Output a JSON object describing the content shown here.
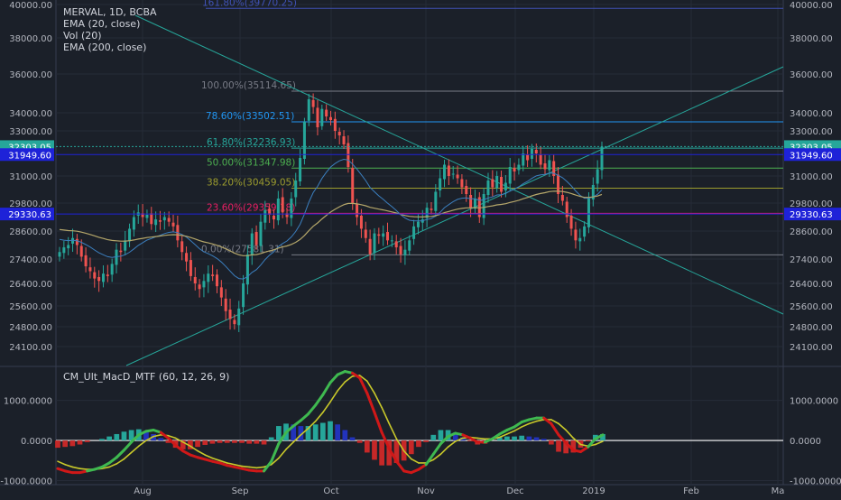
{
  "chart_data": [
    {
      "type": "candlestick",
      "panel": "price",
      "legend": [
        "MERVAL, 1D, BCBA",
        "EMA (20, close)",
        "Vol (20)",
        "EMA (200, close)"
      ],
      "ylim": [
        23500,
        40000
      ],
      "y_ticks": [
        "40000.00",
        "38000.00",
        "36000.00",
        "34000.00",
        "33000.00",
        "31000.00",
        "29800.00",
        "28600.00",
        "27400.00",
        "26400.00",
        "25600.00",
        "24800.00",
        "24100.00"
      ],
      "y_tick_values": [
        40000,
        38000,
        36000,
        34000,
        33000,
        31000,
        29800,
        28600,
        27400,
        26400,
        25600,
        24800,
        24100
      ],
      "x_ticks": [
        "Aug",
        "Sep",
        "Oct",
        "Nov",
        "Dec",
        "2019",
        "Feb",
        "Ma"
      ],
      "price_tags": [
        {
          "label": "32303.05",
          "value": 32303.05,
          "color": "#26a69a",
          "side": "both"
        },
        {
          "label": "31949.60",
          "value": 31949.6,
          "color": "#1e22d8",
          "side": "both"
        },
        {
          "label": "29330.63",
          "value": 29330.63,
          "color": "#1e22d8",
          "side": "both"
        }
      ],
      "fibonacci": [
        {
          "label": "161.80%(39770.25)",
          "value": 39770.25,
          "color": "#3f51b5"
        },
        {
          "label": "100.00%(35114.65)",
          "value": 35114.65,
          "color": "#787b86"
        },
        {
          "label": "78.60%(33502.51)",
          "value": 33502.51,
          "color": "#2196f3"
        },
        {
          "label": "61.80%(32236.93)",
          "value": 32236.93,
          "color": "#26a69a"
        },
        {
          "label": "50.00%(31347.98)",
          "value": 31347.98,
          "color": "#4caf50"
        },
        {
          "label": "38.20%(30459.05)",
          "value": 30459.05,
          "color": "#9c9c2e"
        },
        {
          "label": "23.60%(29359.18)",
          "value": 29359.18,
          "color": "#e91e63"
        },
        {
          "label": "0.00%(27581.31)",
          "value": 27581.31,
          "color": "#787b86"
        }
      ],
      "closes": [
        27700,
        27900,
        28000,
        28300,
        28000,
        27500,
        27100,
        26900,
        26600,
        26500,
        26800,
        26700,
        27200,
        27800,
        27700,
        28200,
        28700,
        29200,
        29400,
        29200,
        29300,
        28900,
        29100,
        29000,
        29200,
        29000,
        28800,
        28200,
        27700,
        27300,
        26700,
        26400,
        26200,
        26500,
        26800,
        26700,
        26300,
        25900,
        25400,
        25100,
        24900,
        25500,
        26400,
        27600,
        28500,
        28000,
        29000,
        29500,
        29300,
        29100,
        30000,
        29400,
        29200,
        30000,
        30800,
        31800,
        33500,
        34700,
        34300,
        33200,
        34200,
        33800,
        33600,
        33000,
        32800,
        32400,
        31400,
        29800,
        29200,
        28700,
        28300,
        27600,
        28500,
        28400,
        28500,
        28200,
        28200,
        27900,
        27600,
        27800,
        28200,
        28800,
        29000,
        29100,
        29600,
        29500,
        30300,
        30900,
        31500,
        31000,
        31100,
        30900,
        30500,
        30200,
        29600,
        30000,
        29200,
        30200,
        30800,
        30500,
        31000,
        30300,
        30700,
        31400,
        31200,
        31500,
        32000,
        31700,
        32200,
        32000,
        31500,
        31300,
        31700,
        31000,
        30200,
        29900,
        29200,
        28700,
        28200,
        28300,
        28800,
        30000,
        30600,
        31300,
        32303
      ]
    },
    {
      "type": "macd",
      "panel": "indicator",
      "title": "CM_Ult_MacD_MTF (60, 12, 26, 9)",
      "ylim": [
        -1100,
        1800
      ],
      "y_ticks": [
        "1000.0000",
        "0.0000",
        "-1000.0000"
      ],
      "y_tick_values": [
        1000,
        0,
        -1000
      ],
      "macd": [
        -700,
        -760,
        -800,
        -800,
        -760,
        -720,
        -660,
        -560,
        -420,
        -240,
        -40,
        140,
        230,
        260,
        200,
        60,
        -120,
        -260,
        -360,
        -420,
        -470,
        -520,
        -560,
        -620,
        -660,
        -700,
        -740,
        -760,
        -760,
        -520,
        -80,
        200,
        360,
        500,
        660,
        880,
        1140,
        1440,
        1640,
        1720,
        1680,
        1560,
        1180,
        700,
        200,
        -200,
        -520,
        -760,
        -800,
        -720,
        -600,
        -340,
        -80,
        100,
        180,
        140,
        60,
        -40,
        -40,
        40,
        160,
        260,
        340,
        460,
        520,
        560,
        560,
        420,
        140,
        -60,
        -240,
        -280,
        -160,
        40,
        140
      ],
      "signal": [
        -520,
        -600,
        -660,
        -700,
        -720,
        -720,
        -700,
        -660,
        -580,
        -460,
        -300,
        -140,
        0,
        100,
        140,
        120,
        60,
        -40,
        -140,
        -260,
        -360,
        -440,
        -500,
        -560,
        -600,
        -640,
        -660,
        -680,
        -660,
        -600,
        -440,
        -220,
        -40,
        140,
        300,
        480,
        700,
        960,
        1240,
        1460,
        1600,
        1620,
        1480,
        1180,
        820,
        420,
        40,
        -260,
        -460,
        -560,
        -560,
        -480,
        -340,
        -160,
        -20,
        60,
        80,
        60,
        40,
        40,
        80,
        160,
        240,
        340,
        420,
        480,
        520,
        520,
        420,
        260,
        60,
        -100,
        -140,
        -100,
        -20
      ],
      "histogram": [
        -180,
        -160,
        -140,
        -100,
        -40,
        0,
        40,
        100,
        160,
        220,
        260,
        280,
        230,
        160,
        60,
        -60,
        -180,
        -220,
        -220,
        -160,
        -110,
        -80,
        -60,
        -60,
        -60,
        -60,
        -80,
        -80,
        -100,
        80,
        360,
        420,
        400,
        360,
        360,
        400,
        440,
        480,
        400,
        260,
        80,
        -60,
        -300,
        -480,
        -620,
        -620,
        -560,
        -500,
        -340,
        -160,
        -40,
        140,
        260,
        260,
        200,
        80,
        -20,
        -100,
        -80,
        0,
        80,
        100,
        100,
        120,
        100,
        80,
        40,
        -100,
        -280,
        -320,
        -300,
        -180,
        -20,
        140,
        160
      ]
    }
  ]
}
